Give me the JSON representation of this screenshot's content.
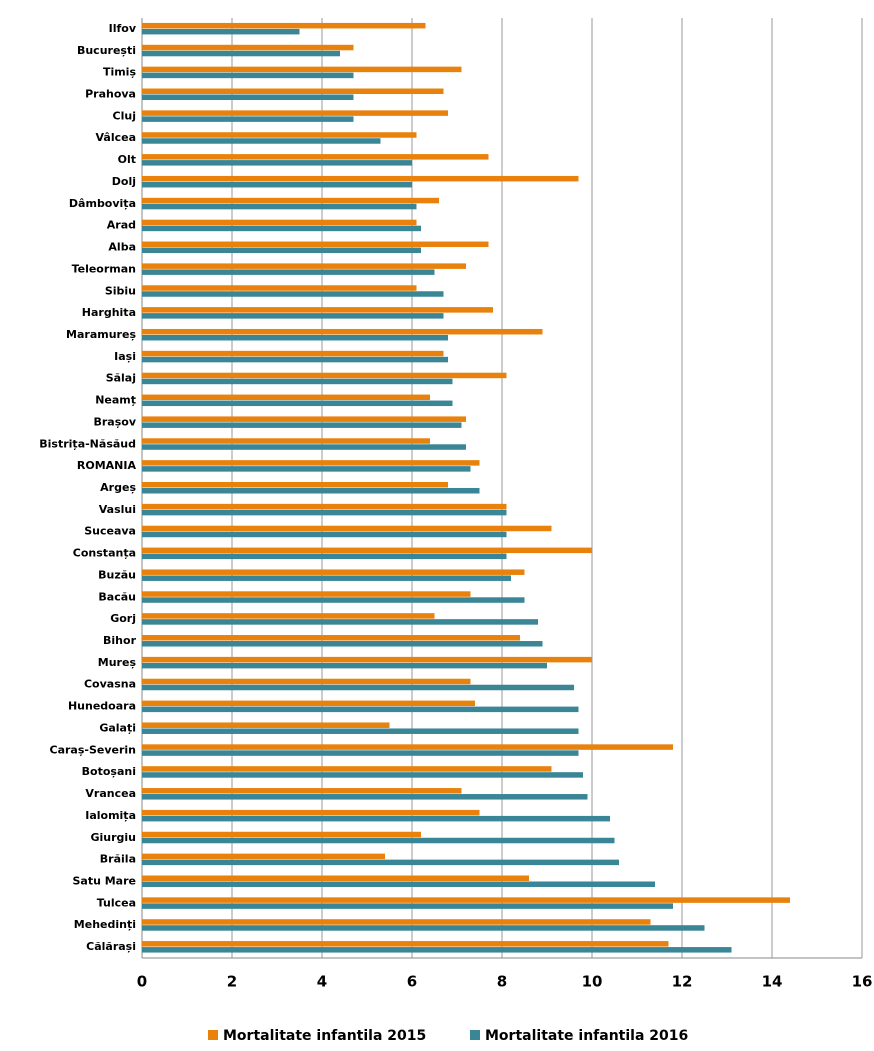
{
  "chart_data": {
    "type": "bar",
    "orientation": "horizontal",
    "categories": [
      "Ilfov",
      "București",
      "Timiș",
      "Prahova",
      "Cluj",
      "Vâlcea",
      "Olt",
      "Dolj",
      "Dâmbovița",
      "Arad",
      "Alba",
      "Teleorman",
      "Sibiu",
      "Harghita",
      "Maramureș",
      "Iași",
      "Sălaj",
      "Neamț",
      "Brașov",
      "Bistrița-Năsăud",
      "ROMANIA",
      "Argeș",
      "Vaslui",
      "Suceava",
      "Constanța",
      "Buzău",
      "Bacău",
      "Gorj",
      "Bihor",
      "Mureș",
      "Covasna",
      "Hunedoara",
      "Galați",
      "Caraș-Severin",
      "Botoșani",
      "Vrancea",
      "Ialomița",
      "Giurgiu",
      "Brăila",
      "Satu Mare",
      "Tulcea",
      "Mehedinți",
      "Călărași"
    ],
    "series": [
      {
        "name": "Mortalitate infantila 2015",
        "color": "#e8820c",
        "values": [
          6.3,
          4.7,
          7.1,
          6.7,
          6.8,
          6.1,
          7.7,
          9.7,
          6.6,
          6.1,
          7.7,
          7.2,
          6.1,
          7.8,
          8.9,
          6.7,
          8.1,
          6.4,
          7.2,
          6.4,
          7.5,
          6.8,
          8.1,
          9.1,
          10.0,
          8.5,
          7.3,
          6.5,
          8.4,
          10.0,
          7.3,
          7.4,
          5.5,
          11.8,
          9.1,
          7.1,
          7.5,
          6.2,
          5.4,
          8.6,
          14.4,
          11.3,
          11.7
        ]
      },
      {
        "name": "Mortalitate infantila 2016",
        "color": "#3a8696",
        "values": [
          3.5,
          4.4,
          4.7,
          4.7,
          4.7,
          5.3,
          6.0,
          6.0,
          6.1,
          6.2,
          6.2,
          6.5,
          6.7,
          6.7,
          6.8,
          6.8,
          6.9,
          6.9,
          7.1,
          7.2,
          7.3,
          7.5,
          8.1,
          8.1,
          8.1,
          8.2,
          8.5,
          8.8,
          8.9,
          9.0,
          9.6,
          9.7,
          9.7,
          9.7,
          9.8,
          9.9,
          10.4,
          10.5,
          10.6,
          11.4,
          11.8,
          12.5,
          13.1
        ]
      }
    ],
    "xlim": [
      0,
      16
    ],
    "xticks": [
      0,
      2,
      4,
      6,
      8,
      10,
      12,
      14,
      16
    ],
    "grid": true
  }
}
